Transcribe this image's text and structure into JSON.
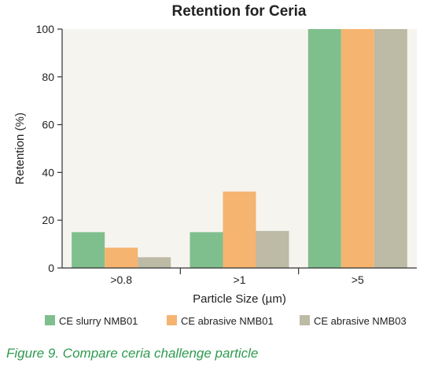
{
  "chart_data": {
    "type": "bar",
    "title": "Retention for Ceria",
    "xlabel": "Particle Size (µm)",
    "ylabel": "Retention (%)",
    "ylim": [
      0,
      100
    ],
    "yticks": [
      0,
      20,
      40,
      60,
      80,
      100
    ],
    "categories": [
      ">0.8",
      ">1",
      ">5"
    ],
    "series": [
      {
        "name": "CE slurry NMB01",
        "color": "#7fbf8e",
        "values": [
          15,
          15,
          100
        ]
      },
      {
        "name": "CE abrasive NMB01",
        "color": "#f5b46f",
        "values": [
          8.5,
          32,
          100
        ]
      },
      {
        "name": "CE abrasive NMB03",
        "color": "#bdbaa5",
        "values": [
          4.5,
          15.5,
          100
        ]
      }
    ],
    "grid": false,
    "legend": "bottom",
    "plot_background": "#f6f4ef"
  },
  "caption": "Figure 9. Compare ceria challenge particle"
}
